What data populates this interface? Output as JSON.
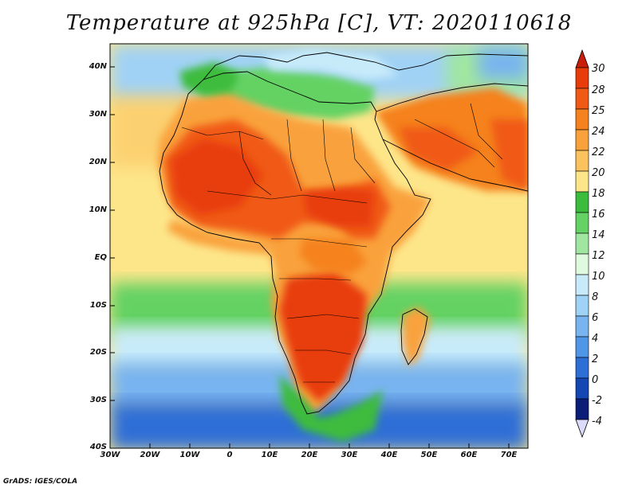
{
  "title": "Temperature at 925hPa [C], VT: 2020110618",
  "credit": "GrADS: IGES/COLA",
  "axes": {
    "lat_labels": [
      "40N",
      "30N",
      "20N",
      "10N",
      "EQ",
      "10S",
      "20S",
      "30S",
      "40S"
    ],
    "lon_labels": [
      "30W",
      "20W",
      "10W",
      "0",
      "10E",
      "20E",
      "30E",
      "40E",
      "50E",
      "60E",
      "70E"
    ]
  },
  "colorbar": {
    "labels": [
      "30",
      "28",
      "25",
      "24",
      "22",
      "20",
      "18",
      "16",
      "14",
      "12",
      "10",
      "8",
      "6",
      "4",
      "2",
      "0",
      "-2",
      "-4"
    ],
    "colors": [
      "#e83c0a",
      "#f05a14",
      "#f5821e",
      "#f9a23c",
      "#fbc35e",
      "#fde68a",
      "#3cbc3c",
      "#64d264",
      "#a0e6a0",
      "#e0fae0",
      "#c8ebfa",
      "#a0d2f5",
      "#78b4f0",
      "#5096e6",
      "#2d6ed7",
      "#1446b4",
      "#0a1e78"
    ],
    "top_arrow_color": "#c81e0a",
    "bottom_arrow_color": "#dcdcfa"
  },
  "legend_note": "Field: air temperature at 925 hPa in degrees Celsius"
}
